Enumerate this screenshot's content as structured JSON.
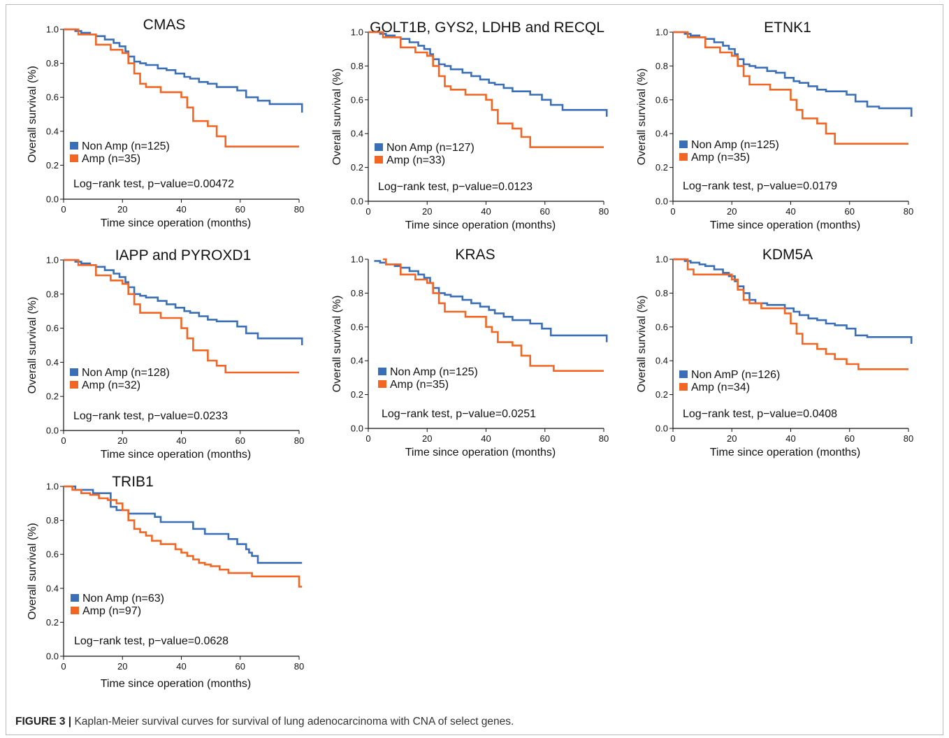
{
  "colors": {
    "non_amp": "#3a6fb7",
    "amp": "#f26522",
    "axis": "#111111"
  },
  "caption": {
    "label": "FIGURE 3 |",
    "text": " Kaplan-Meier survival curves for survival of lung adenocarcinoma with CNA of select genes."
  },
  "chart_data": [
    {
      "type": "line",
      "title": "CMAS",
      "xlabel": "Time since operation (months)",
      "ylabel": "Overall survival (%)",
      "xlim": [
        0,
        80
      ],
      "ylim": [
        0,
        1.0
      ],
      "xticks": [
        0,
        20,
        40,
        60,
        80
      ],
      "yticks": [
        "0.0",
        "0.2",
        "0.4",
        "0.6",
        "0.8",
        "1.0"
      ],
      "legend": [
        "Non Amp (n=125)",
        "Amp (n=35)"
      ],
      "test": "Log−rank test, p−value=0.00472",
      "series": [
        {
          "name": "Non Amp (n=125)",
          "x": [
            0,
            4,
            6,
            9,
            11,
            14,
            17,
            19,
            21,
            22,
            24,
            26,
            28,
            32,
            35,
            38,
            41,
            43,
            46,
            49,
            52,
            55,
            59,
            62,
            66,
            70,
            74,
            78,
            81
          ],
          "y": [
            1.0,
            0.99,
            0.98,
            0.97,
            0.96,
            0.94,
            0.92,
            0.9,
            0.87,
            0.84,
            0.81,
            0.8,
            0.79,
            0.77,
            0.76,
            0.74,
            0.72,
            0.71,
            0.69,
            0.68,
            0.66,
            0.66,
            0.64,
            0.6,
            0.58,
            0.56,
            0.56,
            0.56,
            0.51
          ]
        },
        {
          "name": "Amp (n=35)",
          "x": [
            0,
            5,
            11,
            16,
            20,
            22,
            24,
            26,
            28,
            30,
            33,
            38,
            40,
            42,
            44,
            46,
            49,
            52,
            55,
            59,
            63,
            70,
            80
          ],
          "y": [
            1.0,
            0.97,
            0.91,
            0.88,
            0.86,
            0.8,
            0.74,
            0.68,
            0.66,
            0.66,
            0.63,
            0.63,
            0.6,
            0.54,
            0.46,
            0.46,
            0.43,
            0.37,
            0.31,
            0.31,
            0.31,
            0.31,
            0.31
          ]
        }
      ]
    },
    {
      "type": "line",
      "title": "GOLT1B, GYS2, LDHB and RECQL",
      "xlabel": "Time since operation (months)",
      "ylabel": "Overall survival (%)",
      "xlim": [
        0,
        80
      ],
      "ylim": [
        0,
        1.0
      ],
      "xticks": [
        0,
        20,
        40,
        60,
        80
      ],
      "yticks": [
        "0.0",
        "0.2",
        "0.4",
        "0.6",
        "0.8",
        "1.0"
      ],
      "legend": [
        "Non Amp (n=127)",
        "Amp (n=33)"
      ],
      "test": "Log−rank test, p−value=0.0123",
      "series": [
        {
          "name": "Non Amp (n=127)",
          "x": [
            0,
            4,
            6,
            9,
            11,
            14,
            17,
            19,
            21,
            22,
            24,
            26,
            28,
            32,
            35,
            38,
            41,
            43,
            46,
            49,
            52,
            55,
            59,
            62,
            66,
            70,
            74,
            78,
            81
          ],
          "y": [
            1.0,
            0.99,
            0.98,
            0.97,
            0.96,
            0.94,
            0.92,
            0.9,
            0.87,
            0.84,
            0.81,
            0.8,
            0.78,
            0.76,
            0.74,
            0.72,
            0.7,
            0.69,
            0.67,
            0.65,
            0.65,
            0.63,
            0.6,
            0.57,
            0.54,
            0.54,
            0.54,
            0.54,
            0.5
          ]
        },
        {
          "name": "Amp (n=33)",
          "x": [
            0,
            5,
            11,
            16,
            20,
            22,
            24,
            26,
            28,
            30,
            33,
            38,
            40,
            42,
            44,
            46,
            49,
            52,
            55,
            59,
            63,
            70,
            80
          ],
          "y": [
            1.0,
            0.97,
            0.91,
            0.88,
            0.86,
            0.8,
            0.74,
            0.68,
            0.66,
            0.66,
            0.63,
            0.63,
            0.6,
            0.54,
            0.46,
            0.46,
            0.43,
            0.38,
            0.32,
            0.32,
            0.32,
            0.32,
            0.32
          ]
        }
      ]
    },
    {
      "type": "line",
      "title": "ETNK1",
      "xlabel": "Time since operation (months)",
      "ylabel": "Overall survival (%)",
      "xlim": [
        0,
        80
      ],
      "ylim": [
        0,
        1.0
      ],
      "xticks": [
        0,
        20,
        40,
        60,
        80
      ],
      "yticks": [
        "0.0",
        "0.2",
        "0.4",
        "0.6",
        "0.8",
        "1.0"
      ],
      "legend": [
        "Non Amp (n=125)",
        "Amp (n=35)"
      ],
      "test": "Log−rank test, p−value=0.0179",
      "series": [
        {
          "name": "Non Amp (n=125)",
          "x": [
            0,
            4,
            6,
            9,
            11,
            14,
            17,
            19,
            21,
            22,
            24,
            26,
            28,
            32,
            35,
            38,
            41,
            43,
            46,
            49,
            52,
            55,
            59,
            62,
            66,
            70,
            74,
            78,
            81
          ],
          "y": [
            1.0,
            0.99,
            0.98,
            0.97,
            0.96,
            0.94,
            0.92,
            0.9,
            0.87,
            0.84,
            0.81,
            0.8,
            0.79,
            0.77,
            0.76,
            0.73,
            0.71,
            0.7,
            0.68,
            0.66,
            0.65,
            0.65,
            0.63,
            0.59,
            0.56,
            0.55,
            0.55,
            0.55,
            0.5
          ]
        },
        {
          "name": "Amp (n=35)",
          "x": [
            0,
            5,
            11,
            16,
            20,
            22,
            24,
            26,
            28,
            30,
            33,
            38,
            40,
            42,
            44,
            46,
            49,
            52,
            55,
            59,
            63,
            70,
            80
          ],
          "y": [
            1.0,
            0.97,
            0.91,
            0.88,
            0.86,
            0.8,
            0.74,
            0.69,
            0.69,
            0.69,
            0.66,
            0.66,
            0.6,
            0.54,
            0.49,
            0.49,
            0.46,
            0.4,
            0.34,
            0.34,
            0.34,
            0.34,
            0.34
          ]
        }
      ]
    },
    {
      "type": "line",
      "title": "IAPP and PYROXD1",
      "xlabel": "Time since operation (months)",
      "ylabel": "Overall survival (%)",
      "xlim": [
        0,
        80
      ],
      "ylim": [
        0,
        1.0
      ],
      "xticks": [
        0,
        20,
        40,
        60,
        80
      ],
      "yticks": [
        "0.0",
        "0.2",
        "0.4",
        "0.6",
        "0.8",
        "1.0"
      ],
      "legend": [
        "Non Amp (n=128)",
        "Amp (n=32)"
      ],
      "test": "Log−rank test, p−value=0.0233",
      "series": [
        {
          "name": "Non Amp (n=128)",
          "x": [
            0,
            4,
            6,
            9,
            11,
            14,
            17,
            19,
            21,
            22,
            24,
            26,
            28,
            32,
            35,
            38,
            41,
            43,
            46,
            49,
            52,
            55,
            59,
            62,
            66,
            70,
            74,
            78,
            81
          ],
          "y": [
            1.0,
            0.99,
            0.98,
            0.97,
            0.96,
            0.94,
            0.92,
            0.9,
            0.87,
            0.84,
            0.8,
            0.79,
            0.78,
            0.76,
            0.74,
            0.72,
            0.7,
            0.69,
            0.67,
            0.65,
            0.64,
            0.64,
            0.61,
            0.57,
            0.54,
            0.54,
            0.54,
            0.54,
            0.5
          ]
        },
        {
          "name": "Amp (n=32)",
          "x": [
            0,
            5,
            11,
            16,
            20,
            22,
            24,
            26,
            28,
            30,
            33,
            38,
            40,
            42,
            44,
            46,
            49,
            52,
            55,
            59,
            63,
            70,
            80
          ],
          "y": [
            1.0,
            0.97,
            0.91,
            0.88,
            0.86,
            0.8,
            0.74,
            0.69,
            0.69,
            0.69,
            0.66,
            0.66,
            0.6,
            0.54,
            0.47,
            0.47,
            0.41,
            0.38,
            0.34,
            0.34,
            0.34,
            0.34,
            0.34
          ]
        }
      ]
    },
    {
      "type": "line",
      "title": "KRAS",
      "xlabel": "Time since operation (months)",
      "ylabel": "Overall survival (%)",
      "xlim": [
        0,
        80
      ],
      "ylim": [
        0,
        1.0
      ],
      "xticks": [
        0,
        20,
        40,
        60,
        80
      ],
      "yticks": [
        "0.0",
        "0.2",
        "0.4",
        "0.6",
        "0.8",
        "1.0"
      ],
      "legend": [
        "Non Amp (n=125)",
        "Amp (n=35)"
      ],
      "test": "Log−rank test, p−value=0.0251",
      "series": [
        {
          "name": "Non Amp (n=125)",
          "x": [
            2,
            4,
            6,
            9,
            11,
            14,
            17,
            19,
            21,
            22,
            24,
            26,
            28,
            32,
            35,
            38,
            41,
            43,
            46,
            49,
            52,
            55,
            59,
            62,
            66,
            70,
            74,
            78,
            81
          ],
          "y": [
            0.99,
            0.98,
            0.97,
            0.96,
            0.95,
            0.93,
            0.91,
            0.89,
            0.86,
            0.83,
            0.8,
            0.79,
            0.78,
            0.76,
            0.74,
            0.72,
            0.7,
            0.68,
            0.66,
            0.64,
            0.64,
            0.62,
            0.59,
            0.55,
            0.55,
            0.55,
            0.55,
            0.55,
            0.51
          ]
        },
        {
          "name": "Amp (n=35)",
          "x": [
            5,
            6,
            11,
            16,
            20,
            22,
            24,
            26,
            28,
            30,
            33,
            38,
            40,
            42,
            44,
            46,
            49,
            52,
            55,
            59,
            63,
            70,
            80
          ],
          "y": [
            1.0,
            0.97,
            0.91,
            0.88,
            0.86,
            0.8,
            0.74,
            0.69,
            0.69,
            0.69,
            0.66,
            0.66,
            0.6,
            0.57,
            0.51,
            0.51,
            0.49,
            0.43,
            0.37,
            0.37,
            0.34,
            0.34,
            0.34
          ]
        }
      ]
    },
    {
      "type": "line",
      "title": "KDM5A",
      "xlabel": "Time since operation (months)",
      "ylabel": "Overall survival (%)",
      "xlim": [
        0,
        80
      ],
      "ylim": [
        0,
        1.0
      ],
      "xticks": [
        0,
        20,
        40,
        60,
        80
      ],
      "yticks": [
        "0.0",
        "0.2",
        "0.4",
        "0.6",
        "0.8",
        "1.0"
      ],
      "legend": [
        "Non AmP (n=126)",
        "Amp (n=34)"
      ],
      "test": "Log−rank test, p−value=0.0408",
      "series": [
        {
          "name": "Non AmP (n=126)",
          "x": [
            0,
            4,
            6,
            9,
            11,
            14,
            17,
            19,
            21,
            22,
            24,
            26,
            28,
            32,
            35,
            38,
            41,
            43,
            46,
            49,
            52,
            55,
            59,
            62,
            66,
            70,
            74,
            78,
            81
          ],
          "y": [
            1.0,
            0.99,
            0.98,
            0.97,
            0.96,
            0.94,
            0.92,
            0.9,
            0.87,
            0.84,
            0.8,
            0.76,
            0.74,
            0.73,
            0.73,
            0.71,
            0.69,
            0.67,
            0.65,
            0.64,
            0.62,
            0.61,
            0.59,
            0.55,
            0.54,
            0.54,
            0.54,
            0.54,
            0.5
          ]
        },
        {
          "name": "Amp (n=34)",
          "x": [
            0,
            5,
            7,
            16,
            20,
            22,
            24,
            26,
            28,
            30,
            33,
            38,
            40,
            42,
            44,
            46,
            49,
            52,
            55,
            59,
            63,
            70,
            80
          ],
          "y": [
            1.0,
            0.94,
            0.91,
            0.91,
            0.88,
            0.82,
            0.76,
            0.74,
            0.74,
            0.71,
            0.71,
            0.68,
            0.62,
            0.56,
            0.5,
            0.5,
            0.47,
            0.44,
            0.41,
            0.38,
            0.35,
            0.35,
            0.35
          ]
        }
      ]
    },
    {
      "type": "line",
      "title": "TRIB1",
      "xlabel": "Time since operation (months)",
      "ylabel": "Overall survival (%)",
      "xlim": [
        0,
        80
      ],
      "ylim": [
        0,
        1.0
      ],
      "xticks": [
        0,
        20,
        40,
        60,
        80
      ],
      "yticks": [
        "0.0",
        "0.2",
        "0.4",
        "0.6",
        "0.8",
        "1.0"
      ],
      "legend": [
        "Non Amp (n=63)",
        "Amp (n=97)"
      ],
      "test": "Log−rank test, p−value=0.0628",
      "series": [
        {
          "name": "Non Amp (n=63)",
          "x": [
            0,
            4,
            10,
            16,
            18,
            22,
            27,
            31,
            33,
            40,
            44,
            48,
            52,
            56,
            59,
            62,
            63,
            64,
            66,
            74,
            81
          ],
          "y": [
            1.0,
            0.98,
            0.96,
            0.88,
            0.86,
            0.84,
            0.84,
            0.82,
            0.79,
            0.79,
            0.75,
            0.72,
            0.72,
            0.69,
            0.66,
            0.63,
            0.61,
            0.59,
            0.55,
            0.55,
            0.55
          ]
        },
        {
          "name": "Amp (n=97)",
          "x": [
            0,
            3,
            6,
            9,
            12,
            15,
            18,
            20,
            22,
            24,
            26,
            28,
            30,
            33,
            36,
            38,
            40,
            42,
            44,
            46,
            48,
            50,
            53,
            56,
            58,
            61,
            64,
            67,
            70,
            73,
            76,
            79,
            80,
            81
          ],
          "y": [
            1.0,
            0.98,
            0.96,
            0.95,
            0.93,
            0.92,
            0.9,
            0.86,
            0.8,
            0.75,
            0.73,
            0.71,
            0.68,
            0.66,
            0.66,
            0.63,
            0.61,
            0.59,
            0.57,
            0.55,
            0.54,
            0.53,
            0.51,
            0.49,
            0.49,
            0.49,
            0.47,
            0.47,
            0.47,
            0.47,
            0.47,
            0.47,
            0.41,
            0.41
          ]
        }
      ]
    }
  ]
}
